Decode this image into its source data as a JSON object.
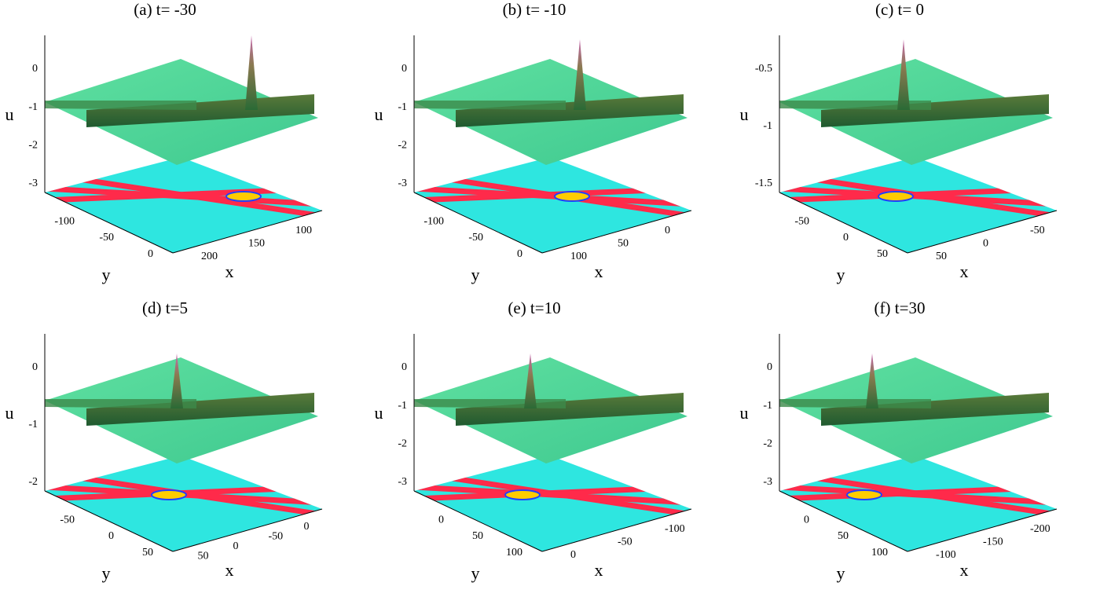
{
  "panels": [
    {
      "title": "(a) t= -30",
      "u_label": "u",
      "y_label": "y",
      "x_label": "x",
      "u_ticks": [
        "0",
        "-1",
        "-2",
        "-3"
      ],
      "y_ticks": [
        "-100",
        "-50",
        "0"
      ],
      "x_ticks": [
        "200",
        "150",
        "100"
      ]
    },
    {
      "title": "(b) t= -10",
      "u_label": "u",
      "y_label": "y",
      "x_label": "x",
      "u_ticks": [
        "0",
        "-1",
        "-2",
        "-3"
      ],
      "y_ticks": [
        "-100",
        "-50",
        "0"
      ],
      "x_ticks": [
        "100",
        "50",
        "0"
      ]
    },
    {
      "title": "(c) t= 0",
      "u_label": "u",
      "y_label": "y",
      "x_label": "x",
      "u_ticks": [
        "-0.5",
        "-1",
        "-1.5"
      ],
      "y_ticks": [
        "-50",
        "0",
        "50"
      ],
      "x_ticks": [
        "50",
        "0",
        "-50"
      ]
    },
    {
      "title": "(d) t=5",
      "u_label": "u",
      "y_label": "y",
      "x_label": "x",
      "u_ticks": [
        "0",
        "-1",
        "-2"
      ],
      "y_ticks": [
        "-50",
        "0",
        "50"
      ],
      "x_ticks": [
        "50",
        "0",
        "-50",
        "0"
      ]
    },
    {
      "title": "(e) t=10",
      "u_label": "u",
      "y_label": "y",
      "x_label": "x",
      "u_ticks": [
        "0",
        "-1",
        "-2",
        "-3"
      ],
      "y_ticks": [
        "0",
        "50",
        "100"
      ],
      "x_ticks": [
        "0",
        "-50",
        "-100"
      ]
    },
    {
      "title": "(f) t=30",
      "u_label": "u",
      "y_label": "y",
      "x_label": "x",
      "u_ticks": [
        "0",
        "-1",
        "-2",
        "-3"
      ],
      "y_ticks": [
        "0",
        "50",
        "100"
      ],
      "x_ticks": [
        "-100",
        "-150",
        "-200"
      ]
    }
  ]
}
